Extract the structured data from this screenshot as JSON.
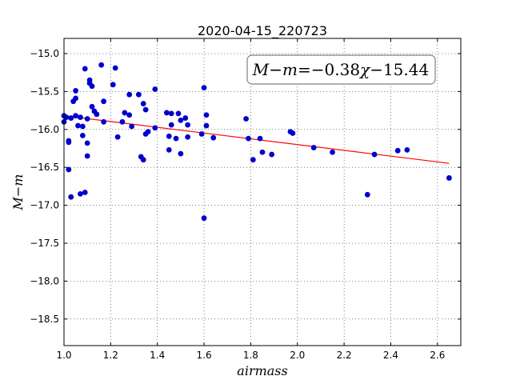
{
  "chart_data": {
    "type": "scatter",
    "title": "2020-04-15_220723",
    "xlabel": "airmass",
    "ylabel": "M−m",
    "xlim": [
      1.0,
      2.7
    ],
    "ylim": [
      -18.85,
      -14.8
    ],
    "y_inverted": true,
    "grid": true,
    "xticks": [
      "1.0",
      "1.2",
      "1.4",
      "1.6",
      "1.8",
      "2.0",
      "2.2",
      "2.4",
      "2.6"
    ],
    "yticks": [
      "−15.0",
      "−15.5",
      "−16.0",
      "−16.5",
      "−17.0",
      "−17.5",
      "−18.0",
      "−18.5"
    ],
    "annotation": {
      "lhs": "M−m",
      "equals": "=",
      "coef": "−0.38",
      "var": "χ",
      "const": "−15.44"
    },
    "fit": {
      "slope": -0.38,
      "intercept": -15.44,
      "x": [
        1.0,
        2.65
      ],
      "color": "#ff0000"
    },
    "marker_color": "#0000cc",
    "points": [
      [
        1.0,
        -15.82
      ],
      [
        1.0,
        -15.9
      ],
      [
        1.01,
        -15.84
      ],
      [
        1.02,
        -16.15
      ],
      [
        1.02,
        -16.17
      ],
      [
        1.02,
        -16.53
      ],
      [
        1.03,
        -15.85
      ],
      [
        1.03,
        -16.89
      ],
      [
        1.04,
        -15.63
      ],
      [
        1.05,
        -15.59
      ],
      [
        1.05,
        -15.49
      ],
      [
        1.05,
        -15.82
      ],
      [
        1.06,
        -15.95
      ],
      [
        1.07,
        -15.84
      ],
      [
        1.07,
        -16.85
      ],
      [
        1.08,
        -15.96
      ],
      [
        1.08,
        -16.08
      ],
      [
        1.09,
        -15.2
      ],
      [
        1.09,
        -16.83
      ],
      [
        1.1,
        -16.35
      ],
      [
        1.1,
        -16.18
      ],
      [
        1.1,
        -15.86
      ],
      [
        1.11,
        -15.35
      ],
      [
        1.11,
        -15.39
      ],
      [
        1.12,
        -15.43
      ],
      [
        1.12,
        -15.7
      ],
      [
        1.13,
        -15.76
      ],
      [
        1.14,
        -15.8
      ],
      [
        1.16,
        -15.15
      ],
      [
        1.17,
        -15.63
      ],
      [
        1.17,
        -15.9
      ],
      [
        1.21,
        -15.41
      ],
      [
        1.22,
        -15.19
      ],
      [
        1.23,
        -16.1
      ],
      [
        1.25,
        -15.9
      ],
      [
        1.26,
        -15.78
      ],
      [
        1.28,
        -15.81
      ],
      [
        1.28,
        -15.54
      ],
      [
        1.29,
        -15.96
      ],
      [
        1.32,
        -15.54
      ],
      [
        1.33,
        -16.36
      ],
      [
        1.34,
        -16.4
      ],
      [
        1.34,
        -15.66
      ],
      [
        1.35,
        -15.74
      ],
      [
        1.35,
        -16.06
      ],
      [
        1.36,
        -16.03
      ],
      [
        1.39,
        -15.98
      ],
      [
        1.39,
        -15.47
      ],
      [
        1.44,
        -15.78
      ],
      [
        1.45,
        -16.27
      ],
      [
        1.45,
        -16.09
      ],
      [
        1.46,
        -15.79
      ],
      [
        1.46,
        -15.94
      ],
      [
        1.48,
        -16.12
      ],
      [
        1.49,
        -15.79
      ],
      [
        1.5,
        -16.32
      ],
      [
        1.5,
        -15.88
      ],
      [
        1.52,
        -15.85
      ],
      [
        1.53,
        -15.94
      ],
      [
        1.53,
        -16.1
      ],
      [
        1.59,
        -16.06
      ],
      [
        1.6,
        -15.45
      ],
      [
        1.6,
        -17.17
      ],
      [
        1.61,
        -15.95
      ],
      [
        1.61,
        -15.81
      ],
      [
        1.64,
        -16.11
      ],
      [
        1.78,
        -15.86
      ],
      [
        1.79,
        -16.12
      ],
      [
        1.81,
        -16.4
      ],
      [
        1.84,
        -16.12
      ],
      [
        1.85,
        -16.3
      ],
      [
        1.89,
        -16.33
      ],
      [
        1.97,
        -16.03
      ],
      [
        1.98,
        -16.05
      ],
      [
        2.07,
        -16.24
      ],
      [
        2.15,
        -16.3
      ],
      [
        2.3,
        -16.86
      ],
      [
        2.33,
        -16.33
      ],
      [
        2.43,
        -16.28
      ],
      [
        2.47,
        -16.27
      ],
      [
        2.65,
        -16.64
      ]
    ]
  }
}
